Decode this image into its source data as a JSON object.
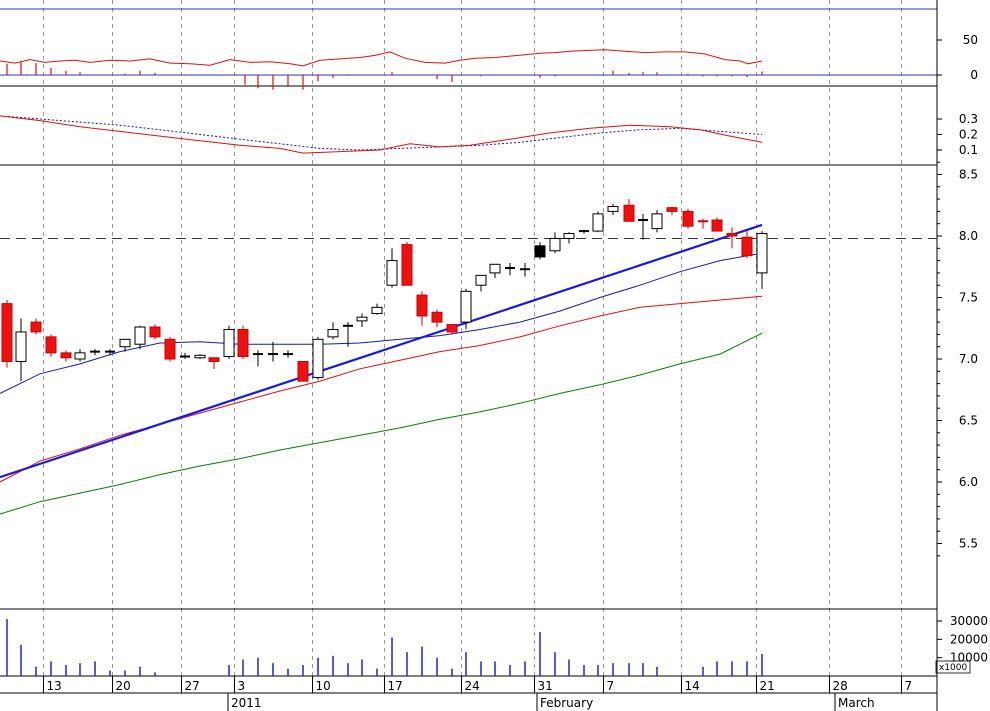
{
  "chart_data": {
    "type": "candlestick",
    "colors": {
      "up_fill": "#ffffff",
      "down_fill": "#ee1111",
      "black_fill": "#000000",
      "sma_short": "#1a1aaa",
      "sma_mid": "#dd1111",
      "sma_long": "#117711",
      "trendline": "#1a1add",
      "volume": "#2222cc",
      "grid": "#999999"
    },
    "x_axis": {
      "ticks": [
        {
          "label": "13",
          "x": 43.5
        },
        {
          "label": "20",
          "x": 112.5
        },
        {
          "label": "27",
          "x": 181.5
        },
        {
          "label": "3",
          "x": 234.5
        },
        {
          "label": "10",
          "x": 312.5
        },
        {
          "label": "17",
          "x": 384.5
        },
        {
          "label": "24",
          "x": 461.5
        },
        {
          "label": "31",
          "x": 534.5
        },
        {
          "label": "7",
          "x": 603.5
        },
        {
          "label": "14",
          "x": 681.5
        },
        {
          "label": "21",
          "x": 756.5
        },
        {
          "label": "28",
          "x": 829.5
        },
        {
          "label": "7",
          "x": 901.5
        }
      ],
      "period_labels": [
        {
          "label": "2011",
          "x": 231
        },
        {
          "label": "February",
          "x": 540
        },
        {
          "label": "March",
          "x": 838
        }
      ]
    },
    "price_axis": {
      "ticks": [
        "8.5",
        "8.0",
        "7.5",
        "7.0",
        "6.5",
        "6.0",
        "5.5"
      ],
      "values": [
        8.5,
        8.0,
        7.5,
        7.0,
        6.5,
        6.0,
        5.5
      ],
      "reference_level": 7.98
    },
    "oscillator_axis": {
      "ticks": [
        "50",
        "0"
      ]
    },
    "macd_axis": {
      "ticks": [
        "0.3",
        "0.2",
        "0.1"
      ]
    },
    "volume_axis": {
      "ticks": [
        "30000",
        "20000",
        "10000"
      ],
      "unit_label": "x1000"
    },
    "candles": [
      {
        "x": 7,
        "o": 7.45,
        "h": 7.48,
        "l": 6.93,
        "c": 6.98
      },
      {
        "x": 21,
        "o": 6.98,
        "h": 7.33,
        "l": 6.82,
        "c": 7.22
      },
      {
        "x": 36,
        "o": 7.3,
        "h": 7.33,
        "l": 7.2,
        "c": 7.22
      },
      {
        "x": 51,
        "o": 7.18,
        "h": 7.2,
        "l": 7.02,
        "c": 7.05
      },
      {
        "x": 66,
        "o": 7.05,
        "h": 7.07,
        "l": 6.98,
        "c": 7.01
      },
      {
        "x": 80,
        "o": 7.0,
        "h": 7.08,
        "l": 6.98,
        "c": 7.05
      },
      {
        "x": 95,
        "o": 7.05,
        "h": 7.08,
        "l": 7.03,
        "c": 7.06
      },
      {
        "x": 110,
        "o": 7.05,
        "h": 7.08,
        "l": 7.03,
        "c": 7.06
      },
      {
        "x": 125,
        "o": 7.1,
        "h": 7.16,
        "l": 7.06,
        "c": 7.16
      },
      {
        "x": 140,
        "o": 7.12,
        "h": 7.27,
        "l": 7.08,
        "c": 7.26
      },
      {
        "x": 155,
        "o": 7.26,
        "h": 7.28,
        "l": 7.16,
        "c": 7.18
      },
      {
        "x": 170,
        "o": 7.16,
        "h": 7.18,
        "l": 6.98,
        "c": 7.0
      },
      {
        "x": 185,
        "o": 7.02,
        "h": 7.05,
        "l": 7.0,
        "c": 7.02
      },
      {
        "x": 200,
        "o": 7.01,
        "h": 7.04,
        "l": 7.0,
        "c": 7.03
      },
      {
        "x": 214,
        "o": 7.01,
        "h": 7.01,
        "l": 6.92,
        "c": 6.98
      },
      {
        "x": 229,
        "o": 7.02,
        "h": 7.27,
        "l": 7.0,
        "c": 7.24
      },
      {
        "x": 243,
        "o": 7.24,
        "h": 7.27,
        "l": 7.0,
        "c": 7.02
      },
      {
        "x": 258,
        "o": 7.04,
        "h": 7.07,
        "l": 6.94,
        "c": 7.04
      },
      {
        "x": 273,
        "o": 7.04,
        "h": 7.14,
        "l": 6.98,
        "c": 7.04
      },
      {
        "x": 288,
        "o": 7.04,
        "h": 7.07,
        "l": 7.01,
        "c": 7.04
      },
      {
        "x": 303,
        "o": 6.98,
        "h": 6.98,
        "l": 6.82,
        "c": 6.82
      },
      {
        "x": 318,
        "o": 6.85,
        "h": 7.18,
        "l": 6.83,
        "c": 7.16
      },
      {
        "x": 333,
        "o": 7.18,
        "h": 7.3,
        "l": 7.16,
        "c": 7.24
      },
      {
        "x": 348,
        "o": 7.26,
        "h": 7.3,
        "l": 7.1,
        "c": 7.27
      },
      {
        "x": 362,
        "o": 7.31,
        "h": 7.37,
        "l": 7.26,
        "c": 7.34
      },
      {
        "x": 377,
        "o": 7.37,
        "h": 7.45,
        "l": 7.36,
        "c": 7.42
      },
      {
        "x": 392,
        "o": 7.6,
        "h": 7.9,
        "l": 7.58,
        "c": 7.8
      },
      {
        "x": 407,
        "o": 7.93,
        "h": 7.95,
        "l": 7.6,
        "c": 7.6
      },
      {
        "x": 422,
        "o": 7.52,
        "h": 7.55,
        "l": 7.27,
        "c": 7.35
      },
      {
        "x": 437,
        "o": 7.38,
        "h": 7.4,
        "l": 7.26,
        "c": 7.3
      },
      {
        "x": 452,
        "o": 7.28,
        "h": 7.28,
        "l": 7.2,
        "c": 7.22
      },
      {
        "x": 466,
        "o": 7.3,
        "h": 7.57,
        "l": 7.24,
        "c": 7.55
      },
      {
        "x": 481,
        "o": 7.6,
        "h": 7.68,
        "l": 7.55,
        "c": 7.68
      },
      {
        "x": 495,
        "o": 7.7,
        "h": 7.77,
        "l": 7.66,
        "c": 7.77
      },
      {
        "x": 510,
        "o": 7.74,
        "h": 7.78,
        "l": 7.68,
        "c": 7.74
      },
      {
        "x": 525,
        "o": 7.73,
        "h": 7.78,
        "l": 7.67,
        "c": 7.73
      },
      {
        "x": 540,
        "o": 7.83,
        "h": 7.95,
        "l": 7.81,
        "c": 7.92,
        "black": true
      },
      {
        "x": 555,
        "o": 7.88,
        "h": 8.03,
        "l": 7.86,
        "c": 7.98
      },
      {
        "x": 569,
        "o": 7.98,
        "h": 8.03,
        "l": 7.94,
        "c": 8.02
      },
      {
        "x": 584,
        "o": 8.03,
        "h": 8.05,
        "l": 8.02,
        "c": 8.04
      },
      {
        "x": 598,
        "o": 8.04,
        "h": 8.2,
        "l": 8.03,
        "c": 8.18
      },
      {
        "x": 613,
        "o": 8.2,
        "h": 8.26,
        "l": 8.17,
        "c": 8.24
      },
      {
        "x": 629,
        "o": 8.25,
        "h": 8.3,
        "l": 8.12,
        "c": 8.12
      },
      {
        "x": 643,
        "o": 8.12,
        "h": 8.18,
        "l": 7.97,
        "c": 8.13
      },
      {
        "x": 657,
        "o": 8.06,
        "h": 8.21,
        "l": 8.03,
        "c": 8.18
      },
      {
        "x": 672,
        "o": 8.23,
        "h": 8.24,
        "l": 8.17,
        "c": 8.2
      },
      {
        "x": 688,
        "o": 8.2,
        "h": 8.22,
        "l": 8.06,
        "c": 8.08
      },
      {
        "x": 703,
        "o": 8.12,
        "h": 8.14,
        "l": 8.06,
        "c": 8.11
      },
      {
        "x": 717,
        "o": 8.13,
        "h": 8.15,
        "l": 8.04,
        "c": 8.04
      },
      {
        "x": 732,
        "o": 8.02,
        "h": 8.07,
        "l": 7.9,
        "c": 8.0
      },
      {
        "x": 747,
        "o": 7.99,
        "h": 8.04,
        "l": 7.82,
        "c": 7.84
      },
      {
        "x": 762,
        "o": 7.7,
        "h": 8.04,
        "l": 7.57,
        "c": 8.02
      }
    ],
    "sma_short": [
      [
        0,
        6.72
      ],
      [
        40,
        6.88
      ],
      [
        80,
        6.96
      ],
      [
        120,
        7.06
      ],
      [
        160,
        7.13
      ],
      [
        200,
        7.14
      ],
      [
        240,
        7.12
      ],
      [
        280,
        7.12
      ],
      [
        320,
        7.12
      ],
      [
        360,
        7.13
      ],
      [
        400,
        7.16
      ],
      [
        440,
        7.19
      ],
      [
        480,
        7.24
      ],
      [
        520,
        7.3
      ],
      [
        560,
        7.39
      ],
      [
        600,
        7.5
      ],
      [
        640,
        7.6
      ],
      [
        680,
        7.71
      ],
      [
        720,
        7.8
      ],
      [
        762,
        7.86
      ]
    ],
    "sma_mid": [
      [
        0,
        6.0
      ],
      [
        40,
        6.17
      ],
      [
        80,
        6.27
      ],
      [
        120,
        6.38
      ],
      [
        160,
        6.47
      ],
      [
        200,
        6.56
      ],
      [
        240,
        6.65
      ],
      [
        280,
        6.74
      ],
      [
        320,
        6.82
      ],
      [
        360,
        6.92
      ],
      [
        400,
        6.99
      ],
      [
        440,
        7.06
      ],
      [
        480,
        7.11
      ],
      [
        520,
        7.18
      ],
      [
        560,
        7.27
      ],
      [
        600,
        7.35
      ],
      [
        640,
        7.42
      ],
      [
        680,
        7.45
      ],
      [
        720,
        7.48
      ],
      [
        762,
        7.51
      ]
    ],
    "sma_long": [
      [
        0,
        5.74
      ],
      [
        40,
        5.84
      ],
      [
        80,
        5.91
      ],
      [
        120,
        5.98
      ],
      [
        160,
        6.06
      ],
      [
        200,
        6.13
      ],
      [
        240,
        6.19
      ],
      [
        280,
        6.26
      ],
      [
        320,
        6.32
      ],
      [
        360,
        6.38
      ],
      [
        400,
        6.44
      ],
      [
        440,
        6.51
      ],
      [
        480,
        6.57
      ],
      [
        520,
        6.64
      ],
      [
        560,
        6.72
      ],
      [
        600,
        6.79
      ],
      [
        640,
        6.87
      ],
      [
        680,
        6.96
      ],
      [
        720,
        7.04
      ],
      [
        762,
        7.21
      ]
    ],
    "trendline": [
      [
        0,
        6.04
      ],
      [
        762,
        8.09
      ]
    ],
    "oscillator_line": [
      [
        0,
        20
      ],
      [
        15,
        17
      ],
      [
        30,
        22
      ],
      [
        45,
        18
      ],
      [
        60,
        20
      ],
      [
        75,
        21
      ],
      [
        90,
        18
      ],
      [
        110,
        21
      ],
      [
        130,
        20
      ],
      [
        150,
        23
      ],
      [
        170,
        17
      ],
      [
        190,
        16
      ],
      [
        210,
        14
      ],
      [
        230,
        22
      ],
      [
        250,
        18
      ],
      [
        270,
        19
      ],
      [
        290,
        16
      ],
      [
        303,
        13
      ],
      [
        320,
        21
      ],
      [
        340,
        23
      ],
      [
        360,
        25
      ],
      [
        375,
        28
      ],
      [
        390,
        33
      ],
      [
        405,
        24
      ],
      [
        425,
        18
      ],
      [
        445,
        17
      ],
      [
        460,
        21
      ],
      [
        475,
        24
      ],
      [
        495,
        25
      ],
      [
        510,
        27
      ],
      [
        525,
        29
      ],
      [
        540,
        31
      ],
      [
        555,
        32
      ],
      [
        570,
        34
      ],
      [
        585,
        35
      ],
      [
        605,
        36
      ],
      [
        625,
        34
      ],
      [
        645,
        32
      ],
      [
        665,
        33
      ],
      [
        685,
        33
      ],
      [
        705,
        30
      ],
      [
        725,
        22
      ],
      [
        740,
        20
      ],
      [
        748,
        16
      ],
      [
        762,
        20
      ]
    ],
    "oscillator_bars": [
      [
        7,
        16
      ],
      [
        21,
        18
      ],
      [
        36,
        17
      ],
      [
        51,
        10
      ],
      [
        66,
        6
      ],
      [
        80,
        4
      ],
      [
        125,
        2
      ],
      [
        140,
        6
      ],
      [
        155,
        3
      ],
      [
        185,
        -1
      ],
      [
        245,
        -14
      ],
      [
        258,
        -19
      ],
      [
        273,
        -21
      ],
      [
        288,
        -17
      ],
      [
        303,
        -21
      ],
      [
        318,
        -9
      ],
      [
        333,
        -4
      ],
      [
        348,
        -1
      ],
      [
        392,
        4
      ],
      [
        437,
        -6
      ],
      [
        452,
        -10
      ],
      [
        481,
        -2
      ],
      [
        540,
        -4
      ],
      [
        555,
        -2
      ],
      [
        613,
        6
      ],
      [
        629,
        3
      ],
      [
        643,
        4
      ],
      [
        657,
        4
      ],
      [
        688,
        2
      ],
      [
        703,
        -2
      ],
      [
        717,
        -2
      ],
      [
        732,
        -2
      ],
      [
        747,
        -3
      ],
      [
        762,
        5
      ]
    ],
    "macd_line": [
      [
        0,
        0.32
      ],
      [
        40,
        0.29
      ],
      [
        80,
        0.25
      ],
      [
        120,
        0.22
      ],
      [
        160,
        0.19
      ],
      [
        200,
        0.16
      ],
      [
        240,
        0.13
      ],
      [
        280,
        0.11
      ],
      [
        303,
        0.08
      ],
      [
        340,
        0.09
      ],
      [
        380,
        0.1
      ],
      [
        410,
        0.14
      ],
      [
        440,
        0.12
      ],
      [
        470,
        0.13
      ],
      [
        510,
        0.17
      ],
      [
        550,
        0.21
      ],
      [
        590,
        0.24
      ],
      [
        630,
        0.26
      ],
      [
        670,
        0.25
      ],
      [
        700,
        0.23
      ],
      [
        730,
        0.19
      ],
      [
        762,
        0.15
      ]
    ],
    "macd_signal": [
      [
        0,
        0.32
      ],
      [
        40,
        0.3
      ],
      [
        80,
        0.28
      ],
      [
        120,
        0.26
      ],
      [
        160,
        0.23
      ],
      [
        200,
        0.2
      ],
      [
        240,
        0.17
      ],
      [
        280,
        0.14
      ],
      [
        320,
        0.11
      ],
      [
        360,
        0.1
      ],
      [
        400,
        0.11
      ],
      [
        440,
        0.12
      ],
      [
        480,
        0.13
      ],
      [
        520,
        0.15
      ],
      [
        560,
        0.18
      ],
      [
        600,
        0.21
      ],
      [
        640,
        0.23
      ],
      [
        680,
        0.24
      ],
      [
        720,
        0.22
      ],
      [
        762,
        0.2
      ]
    ],
    "volume": [
      [
        7,
        31000
      ],
      [
        21,
        17000
      ],
      [
        36,
        5000
      ],
      [
        51,
        8000
      ],
      [
        66,
        6000
      ],
      [
        80,
        7000
      ],
      [
        95,
        8000
      ],
      [
        110,
        3000
      ],
      [
        125,
        3000
      ],
      [
        140,
        5000
      ],
      [
        155,
        2000
      ],
      [
        229,
        6000
      ],
      [
        243,
        9000
      ],
      [
        258,
        10000
      ],
      [
        273,
        7000
      ],
      [
        288,
        4000
      ],
      [
        303,
        6000
      ],
      [
        318,
        10000
      ],
      [
        333,
        11000
      ],
      [
        348,
        7000
      ],
      [
        362,
        9000
      ],
      [
        377,
        4000
      ],
      [
        392,
        21000
      ],
      [
        407,
        13000
      ],
      [
        422,
        16000
      ],
      [
        437,
        10000
      ],
      [
        452,
        4000
      ],
      [
        466,
        13000
      ],
      [
        481,
        8000
      ],
      [
        495,
        8000
      ],
      [
        510,
        6000
      ],
      [
        525,
        8000
      ],
      [
        540,
        24000
      ],
      [
        555,
        13000
      ],
      [
        569,
        9000
      ],
      [
        584,
        6000
      ],
      [
        598,
        6000
      ],
      [
        613,
        7000
      ],
      [
        629,
        7000
      ],
      [
        643,
        7000
      ],
      [
        657,
        5000
      ],
      [
        703,
        5000
      ],
      [
        717,
        8000
      ],
      [
        732,
        8000
      ],
      [
        747,
        8000
      ],
      [
        762,
        12000
      ]
    ]
  }
}
